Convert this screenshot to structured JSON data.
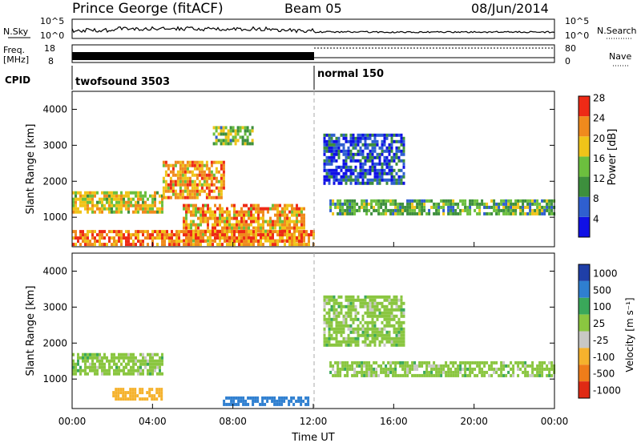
{
  "header": {
    "station": "Prince George (fitACF)",
    "beam": "Beam 05",
    "date": "08/Jun/2014"
  },
  "noise_panel": {
    "left_label": "N.Sky",
    "right_label": "N.Search",
    "left_ticks": [
      "10^5",
      "10^0"
    ],
    "right_ticks": [
      "10^5",
      "10^0"
    ]
  },
  "freq_panel": {
    "left_label_line1": "Freq.",
    "left_label_line2": "[MHz]",
    "left_ticks": [
      "18",
      "8"
    ],
    "right_label": "Nave",
    "right_ticks": [
      "80",
      "0"
    ]
  },
  "cpid_panel": {
    "label": "CPID",
    "segments": [
      {
        "name": "twofsound 3503",
        "start_hour": 0,
        "end_hour": 12
      },
      {
        "name": "normal 150",
        "start_hour": 12,
        "end_hour": 24
      }
    ]
  },
  "power_panel": {
    "ylabel": "Slant Range [km]",
    "yticks": [
      "1000",
      "2000",
      "3000",
      "4000"
    ],
    "colorbar_label": "Power [dB]",
    "colorbar_ticks": [
      "4",
      "8",
      "12",
      "16",
      "20",
      "24",
      "28"
    ],
    "colors": [
      "#1010e6",
      "#2f5fd0",
      "#3d8f3d",
      "#6cbf3e",
      "#f0c419",
      "#f08a1d",
      "#ee2a16"
    ]
  },
  "velocity_panel": {
    "ylabel": "Slant Range [km]",
    "yticks": [
      "1000",
      "2000",
      "3000",
      "4000"
    ],
    "colorbar_label": "Velocity [m s⁻¹]",
    "colorbar_ticks": [
      "1000",
      "500",
      "100",
      "25",
      "-25",
      "-100",
      "-500",
      "-1000"
    ],
    "colors": [
      "#1f3fa8",
      "#2f7fd0",
      "#3aa85a",
      "#8ac640",
      "#c8c8c4",
      "#f5b22d",
      "#ef7d1a",
      "#e02a14"
    ]
  },
  "xaxis": {
    "label": "Time UT",
    "ticks": [
      "00:00",
      "04:00",
      "08:00",
      "12:00",
      "16:00",
      "20:00",
      "00:00"
    ]
  },
  "chart_data": {
    "type": "heatmap",
    "title": "Prince George (fitACF) Beam 05 08/Jun/2014",
    "xlabel": "Time UT",
    "ylabel": "Slant Range [km]",
    "xlim_hours": [
      0,
      24
    ],
    "ylim_km": [
      180,
      4500
    ],
    "power_scale_db": [
      0,
      30
    ],
    "velocity_scale": [
      -1000,
      1000
    ],
    "mode_change_hour": 12,
    "power_bands": [
      {
        "t": [
          0,
          4.5
        ],
        "r": [
          1100,
          1700
        ],
        "db": 18
      },
      {
        "t": [
          4.5,
          7.5
        ],
        "r": [
          1500,
          2500
        ],
        "db": 22
      },
      {
        "t": [
          5.5,
          11.5
        ],
        "r": [
          300,
          1300
        ],
        "db": 22
      },
      {
        "t": [
          7.0,
          9.0
        ],
        "r": [
          3000,
          3500
        ],
        "db": 14
      },
      {
        "t": [
          12.8,
          24
        ],
        "r": [
          1050,
          1450
        ],
        "db": 13
      },
      {
        "t": [
          12.5,
          16.5
        ],
        "r": [
          1900,
          3300
        ],
        "db": 6
      },
      {
        "t": [
          0,
          12
        ],
        "r": [
          200,
          600
        ],
        "db": 24
      }
    ],
    "velocity_bands": [
      {
        "t": [
          0,
          4.5
        ],
        "r": [
          1100,
          1700
        ],
        "v": 0
      },
      {
        "t": [
          2.0,
          4.5
        ],
        "r": [
          400,
          700
        ],
        "v": -150
      },
      {
        "t": [
          7.5,
          11.8
        ],
        "r": [
          250,
          500
        ],
        "v": 150
      },
      {
        "t": [
          12.8,
          24
        ],
        "r": [
          1050,
          1450
        ],
        "v": 0
      },
      {
        "t": [
          12.5,
          16.5
        ],
        "r": [
          1900,
          3300
        ],
        "v": 0
      }
    ]
  }
}
